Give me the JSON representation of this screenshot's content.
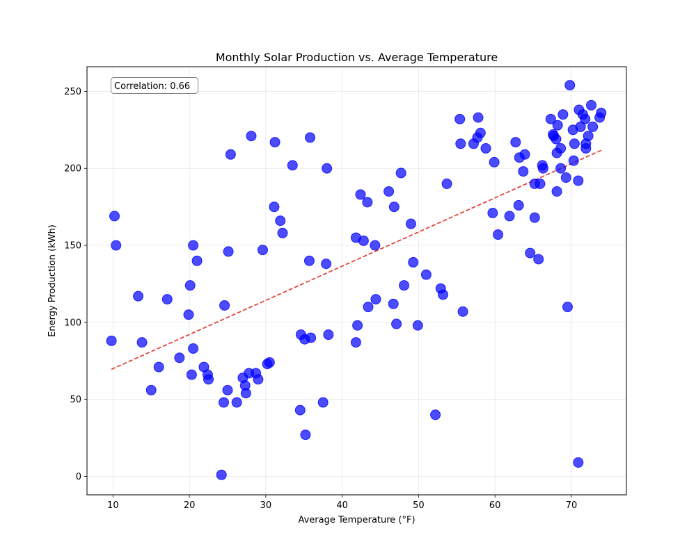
{
  "chart_data": {
    "type": "scatter",
    "title": "Monthly Solar Production vs. Average Temperature",
    "xlabel": "Average Temperature (°F)",
    "ylabel": "Energy Production (kWh)",
    "xlim": [
      6.6,
      77.2
    ],
    "ylim": [
      -12,
      266
    ],
    "xticks": [
      10,
      20,
      30,
      40,
      50,
      60,
      70
    ],
    "yticks": [
      0,
      50,
      100,
      150,
      200,
      250
    ],
    "grid": true,
    "annotation": "Correlation: 0.66",
    "annotation_position": "top-left",
    "colors": {
      "points": "#0000ff",
      "trend": "#e8403a"
    },
    "trend_line": {
      "style": "dashed",
      "x": [
        9.8,
        73.9
      ],
      "y": [
        69.5,
        211.7
      ]
    },
    "series": [
      {
        "points": [
          [
            10.2,
            169
          ],
          [
            10.4,
            150
          ],
          [
            9.8,
            88
          ],
          [
            13.3,
            117
          ],
          [
            13.8,
            87
          ],
          [
            15.0,
            56
          ],
          [
            16.0,
            71
          ],
          [
            17.1,
            115
          ],
          [
            18.7,
            77
          ],
          [
            19.9,
            105
          ],
          [
            20.1,
            124
          ],
          [
            20.3,
            66
          ],
          [
            20.5,
            83
          ],
          [
            20.5,
            150
          ],
          [
            21.0,
            140
          ],
          [
            21.9,
            71
          ],
          [
            22.4,
            66
          ],
          [
            22.5,
            63
          ],
          [
            24.2,
            1
          ],
          [
            24.5,
            48
          ],
          [
            24.6,
            111
          ],
          [
            25.0,
            56
          ],
          [
            25.1,
            146
          ],
          [
            25.4,
            209
          ],
          [
            26.2,
            48
          ],
          [
            27.0,
            64
          ],
          [
            27.3,
            59
          ],
          [
            27.4,
            54
          ],
          [
            27.8,
            67
          ],
          [
            28.1,
            221
          ],
          [
            28.7,
            67
          ],
          [
            29.0,
            63
          ],
          [
            29.6,
            147
          ],
          [
            30.2,
            73
          ],
          [
            30.5,
            74
          ],
          [
            31.1,
            175
          ],
          [
            31.2,
            217
          ],
          [
            31.9,
            166
          ],
          [
            32.2,
            158
          ],
          [
            33.5,
            202
          ],
          [
            34.5,
            43
          ],
          [
            34.6,
            92
          ],
          [
            35.1,
            89
          ],
          [
            35.2,
            27
          ],
          [
            35.7,
            140
          ],
          [
            35.8,
            220
          ],
          [
            35.9,
            90
          ],
          [
            37.5,
            48
          ],
          [
            37.9,
            138
          ],
          [
            38.0,
            200
          ],
          [
            38.2,
            92
          ],
          [
            41.8,
            155
          ],
          [
            41.8,
            87
          ],
          [
            42.0,
            98
          ],
          [
            42.4,
            183
          ],
          [
            42.8,
            153
          ],
          [
            43.3,
            178
          ],
          [
            43.4,
            110
          ],
          [
            44.3,
            150
          ],
          [
            44.4,
            115
          ],
          [
            46.1,
            185
          ],
          [
            46.7,
            112
          ],
          [
            46.8,
            175
          ],
          [
            47.1,
            99
          ],
          [
            47.7,
            197
          ],
          [
            48.1,
            124
          ],
          [
            49.0,
            164
          ],
          [
            49.3,
            139
          ],
          [
            49.9,
            98
          ],
          [
            51.0,
            131
          ],
          [
            52.2,
            40
          ],
          [
            52.9,
            122
          ],
          [
            53.2,
            118
          ],
          [
            53.7,
            190
          ],
          [
            55.4,
            232
          ],
          [
            55.5,
            216
          ],
          [
            55.8,
            107
          ],
          [
            57.2,
            216
          ],
          [
            57.7,
            220
          ],
          [
            57.8,
            233
          ],
          [
            58.1,
            223
          ],
          [
            58.8,
            213
          ],
          [
            59.7,
            171
          ],
          [
            59.9,
            204
          ],
          [
            60.4,
            157
          ],
          [
            61.9,
            169
          ],
          [
            62.7,
            217
          ],
          [
            63.1,
            176
          ],
          [
            63.2,
            207
          ],
          [
            63.7,
            198
          ],
          [
            63.9,
            209
          ],
          [
            64.6,
            145
          ],
          [
            65.2,
            190
          ],
          [
            65.2,
            168
          ],
          [
            65.7,
            141
          ],
          [
            65.9,
            190
          ],
          [
            66.2,
            202
          ],
          [
            66.3,
            200
          ],
          [
            67.3,
            232
          ],
          [
            67.6,
            222
          ],
          [
            67.7,
            221
          ],
          [
            68.0,
            219
          ],
          [
            68.1,
            210
          ],
          [
            68.1,
            185
          ],
          [
            68.2,
            228
          ],
          [
            68.6,
            213
          ],
          [
            68.6,
            200
          ],
          [
            68.9,
            235
          ],
          [
            69.3,
            194
          ],
          [
            69.5,
            110
          ],
          [
            69.8,
            254
          ],
          [
            70.2,
            225
          ],
          [
            70.3,
            205
          ],
          [
            70.4,
            216
          ],
          [
            70.9,
            192
          ],
          [
            70.9,
            9
          ],
          [
            71.0,
            238
          ],
          [
            71.2,
            227
          ],
          [
            71.5,
            235
          ],
          [
            71.8,
            232
          ],
          [
            71.9,
            216
          ],
          [
            71.9,
            213
          ],
          [
            72.2,
            221
          ],
          [
            72.6,
            241
          ],
          [
            72.8,
            227
          ],
          [
            73.7,
            233
          ],
          [
            73.9,
            236
          ]
        ]
      }
    ]
  }
}
